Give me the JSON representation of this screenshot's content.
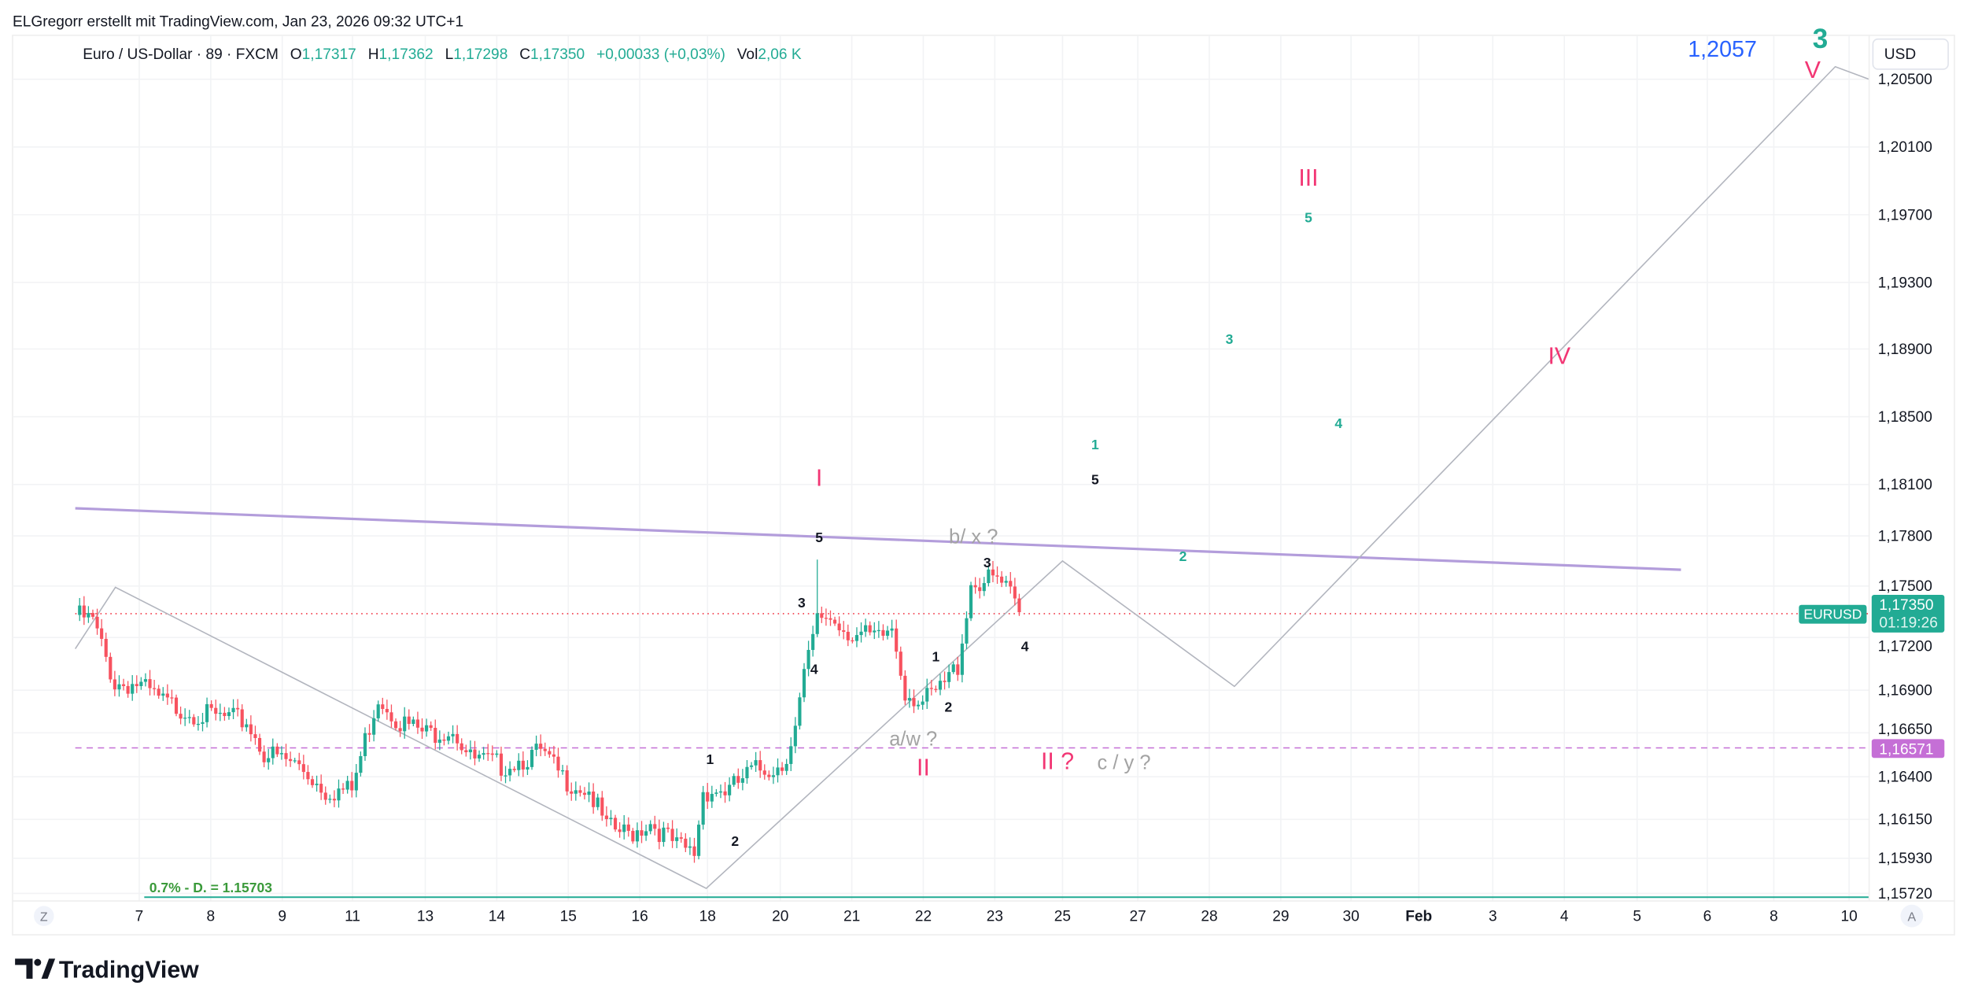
{
  "header": {
    "attribution": "ELGregorr erstellt mit TradingView.com, Jan 23, 2026 09:32 UTC+1"
  },
  "legend": {
    "symbol": "Euro / US-Dollar · 89 · FXCM",
    "o_label": "O",
    "o": "1,17317",
    "h_label": "H",
    "h": "1,17362",
    "l_label": "L",
    "l": "1,17298",
    "c_label": "C",
    "c": "1,17350",
    "change": "+0,00033 (+0,03%)",
    "vol_label": "Vol",
    "vol": "2,06 K"
  },
  "price_axis": {
    "currency": "USD",
    "ticks": [
      "1,20500",
      "1,20100",
      "1,19700",
      "1,19300",
      "1,18900",
      "1,18500",
      "1,18100",
      "1,17800",
      "1,17500",
      "1,17200",
      "1,16900",
      "1,16650",
      "1,16400",
      "1,16150",
      "1,15930",
      "1,15720"
    ],
    "last_price": "1,17350",
    "countdown": "01:19:26",
    "level_price": "1,16571",
    "symbol_tag": "EURUSD"
  },
  "time_axis": {
    "ticks": [
      "7",
      "8",
      "9",
      "11",
      "13",
      "14",
      "15",
      "16",
      "18",
      "20",
      "21",
      "22",
      "23",
      "25",
      "27",
      "28",
      "29",
      "30",
      "Feb",
      "3",
      "4",
      "5",
      "6",
      "8",
      "10"
    ],
    "z_button": "Z",
    "a_button": "A"
  },
  "annotations": {
    "target_value": "1,2057",
    "big_3": "3",
    "wave_V": "V",
    "wave_IV": "IV",
    "wave_III": "III",
    "wave_II": "II",
    "wave_II_q": "II ?",
    "wave_I": "I",
    "bx": "b/ x ?",
    "aw": "a/w ?",
    "cy": "c / y ?",
    "fib_label": "0.7% - D.  = 1.15703",
    "g5": "5",
    "g3": "3",
    "g4": "4",
    "g1": "1",
    "g2": "2",
    "b5a": "5",
    "b5b": "5",
    "b3a": "3",
    "b3b": "3",
    "b4a": "4",
    "b4b": "4",
    "b1a": "1",
    "b1b": "1",
    "b2a": "2",
    "b2b": "2"
  },
  "colors": {
    "up": "#22ab94",
    "down": "#f7525f",
    "wave": "#f23674",
    "trend": "#b39ddb",
    "level": "#c56fd6"
  },
  "price_path": [
    [
      0,
      1.17355
    ],
    [
      4,
      1.17318
    ],
    [
      9,
      1.1695
    ],
    [
      14,
      1.1695
    ],
    [
      20,
      1.1684
    ],
    [
      29,
      1.16766
    ],
    [
      39,
      1.16729
    ],
    [
      43,
      1.16545
    ],
    [
      51,
      1.16471
    ],
    [
      57,
      1.16324
    ],
    [
      63,
      1.16324
    ],
    [
      66,
      1.16619
    ],
    [
      69,
      1.16877
    ],
    [
      74,
      1.16729
    ],
    [
      80,
      1.16656
    ],
    [
      86,
      1.16692
    ],
    [
      90,
      1.16508
    ],
    [
      97,
      1.16471
    ],
    [
      106,
      1.16545
    ],
    [
      111,
      1.16398
    ],
    [
      117,
      1.16324
    ],
    [
      121,
      1.16103
    ],
    [
      126,
      1.16066
    ],
    [
      131,
      1.1614
    ],
    [
      137,
      1.15993
    ],
    [
      141,
      1.15956
    ],
    [
      143,
      1.16324
    ],
    [
      149,
      1.16324
    ],
    [
      154,
      1.16435
    ],
    [
      161,
      1.16471
    ],
    [
      164,
      1.16692
    ],
    [
      166,
      1.16987
    ],
    [
      169,
      1.17318
    ],
    [
      171,
      1.17355
    ],
    [
      177,
      1.17245
    ],
    [
      183,
      1.17208
    ],
    [
      186,
      1.17282
    ],
    [
      189,
      1.16913
    ],
    [
      193,
      1.1684
    ],
    [
      197,
      1.16913
    ],
    [
      201,
      1.17061
    ],
    [
      204,
      1.17539
    ],
    [
      210,
      1.17561
    ],
    [
      213,
      1.17466
    ],
    [
      215,
      1.17355
    ]
  ],
  "footer": {
    "brand": "TradingView"
  }
}
